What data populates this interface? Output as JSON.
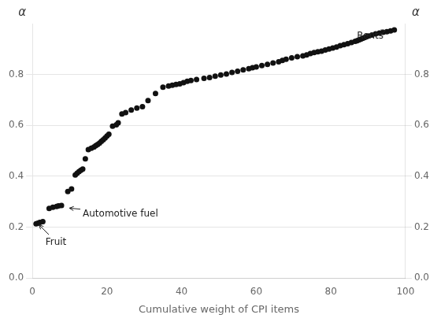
{
  "chart_data": {
    "type": "scatter",
    "xlabel": "Cumulative weight of CPI items",
    "ylabel": "α",
    "y2label": "α",
    "xlim": [
      0,
      100
    ],
    "ylim": [
      0.0,
      1.0
    ],
    "xticks": [
      0,
      20,
      40,
      60,
      80,
      100
    ],
    "yticks": [
      {
        "value": 0.0,
        "label": "0.0"
      },
      0.2,
      0.4,
      0.6,
      0.8
    ],
    "y2lim": [
      0.0,
      1.0
    ],
    "y2ticks": [
      {
        "value": 0.0,
        "label": "0.0"
      },
      0.2,
      0.4,
      0.6,
      0.8
    ],
    "grid": true,
    "color": "#111111",
    "x": [
      1.0,
      1.5,
      2.0,
      2.8,
      4.5,
      5.5,
      6.5,
      7.0,
      7.8,
      9.5,
      10.5,
      11.5,
      12.0,
      12.5,
      13.0,
      13.5,
      14.2,
      15.0,
      15.8,
      16.5,
      17.0,
      17.5,
      18.0,
      18.5,
      19.0,
      19.5,
      20.0,
      20.5,
      21.5,
      22.5,
      23.0,
      24.0,
      25.0,
      26.5,
      28.0,
      29.5,
      31.0,
      33.0,
      35.0,
      36.5,
      37.5,
      38.5,
      39.5,
      40.5,
      41.5,
      42.5,
      44.0,
      46.0,
      47.5,
      49.0,
      50.5,
      52.0,
      53.5,
      55.0,
      56.5,
      58.0,
      59.0,
      60.0,
      61.5,
      63.0,
      64.5,
      66.0,
      67.0,
      68.0,
      69.5,
      71.0,
      72.5,
      73.5,
      74.5,
      75.5,
      76.5,
      77.5,
      78.5,
      79.5,
      80.5,
      81.5,
      82.5,
      83.5,
      84.5,
      85.5,
      86.5,
      87.0,
      87.5,
      88.0,
      88.5,
      89.0,
      89.5,
      90.0,
      91.0,
      92.0,
      93.0,
      94.0,
      95.0,
      96.0,
      97.0
    ],
    "values": [
      0.213,
      0.215,
      0.218,
      0.221,
      0.273,
      0.278,
      0.281,
      0.283,
      0.285,
      0.34,
      0.35,
      0.405,
      0.412,
      0.418,
      0.423,
      0.428,
      0.468,
      0.505,
      0.51,
      0.515,
      0.52,
      0.525,
      0.53,
      0.537,
      0.543,
      0.55,
      0.558,
      0.565,
      0.597,
      0.602,
      0.61,
      0.645,
      0.65,
      0.66,
      0.668,
      0.673,
      0.697,
      0.725,
      0.75,
      0.755,
      0.758,
      0.761,
      0.763,
      0.768,
      0.773,
      0.776,
      0.78,
      0.785,
      0.788,
      0.793,
      0.798,
      0.802,
      0.808,
      0.813,
      0.818,
      0.823,
      0.827,
      0.83,
      0.835,
      0.84,
      0.845,
      0.85,
      0.855,
      0.86,
      0.865,
      0.87,
      0.873,
      0.877,
      0.882,
      0.886,
      0.889,
      0.892,
      0.896,
      0.9,
      0.904,
      0.908,
      0.913,
      0.917,
      0.921,
      0.926,
      0.93,
      0.933,
      0.936,
      0.939,
      0.942,
      0.945,
      0.948,
      0.951,
      0.955,
      0.96,
      0.963,
      0.966,
      0.968,
      0.971,
      0.975
    ],
    "annotations": [
      {
        "text": "Fruit",
        "x": 3.5,
        "y": 0.13,
        "xy": [
          1.5,
          0.213
        ]
      },
      {
        "text": "Automotive fuel",
        "x": 13.5,
        "y": 0.243,
        "xy": [
          9.5,
          0.275
        ]
      },
      {
        "text": "Rents",
        "x": 87.0,
        "y": 0.942,
        "xy": [
          95.0,
          0.975
        ]
      }
    ]
  }
}
